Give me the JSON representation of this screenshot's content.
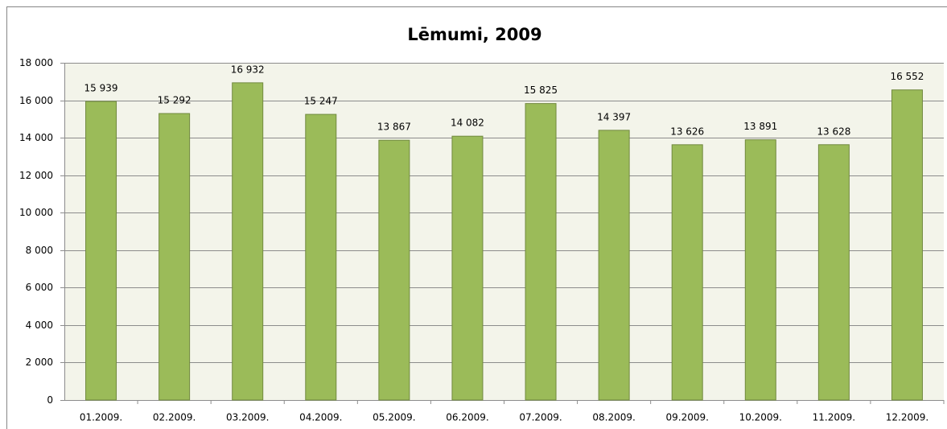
{
  "chart_data": {
    "type": "bar",
    "title": "Lēmumi, 2009",
    "categories": [
      "01.2009.",
      "02.2009.",
      "03.2009.",
      "04.2009.",
      "05.2009.",
      "06.2009.",
      "07.2009.",
      "08.2009.",
      "09.2009.",
      "10.2009.",
      "11.2009.",
      "12.2009."
    ],
    "values": [
      15939,
      15292,
      16932,
      15247,
      13867,
      14082,
      15825,
      14397,
      13626,
      13891,
      13628,
      16552
    ],
    "value_labels": [
      "15 939",
      "15 292",
      "16 932",
      "15 247",
      "13 867",
      "14 082",
      "15 825",
      "14 397",
      "13 626",
      "13 891",
      "13 628",
      "16 552"
    ],
    "color": "#9bbb59",
    "ylim": [
      0,
      18000
    ],
    "yticks": [
      0,
      {
        "value": 2000,
        "label": "2 000"
      },
      {
        "value": 4000,
        "label": "4 000"
      },
      {
        "value": 6000,
        "label": "6 000"
      },
      {
        "value": 8000,
        "label": "8 000"
      },
      {
        "value": 10000,
        "label": "10 000"
      },
      {
        "value": 12000,
        "label": "12 000"
      },
      {
        "value": 14000,
        "label": "14 000"
      },
      {
        "value": 16000,
        "label": "16 000"
      },
      {
        "value": 18000,
        "label": "18 000"
      }
    ],
    "grid": true
  }
}
